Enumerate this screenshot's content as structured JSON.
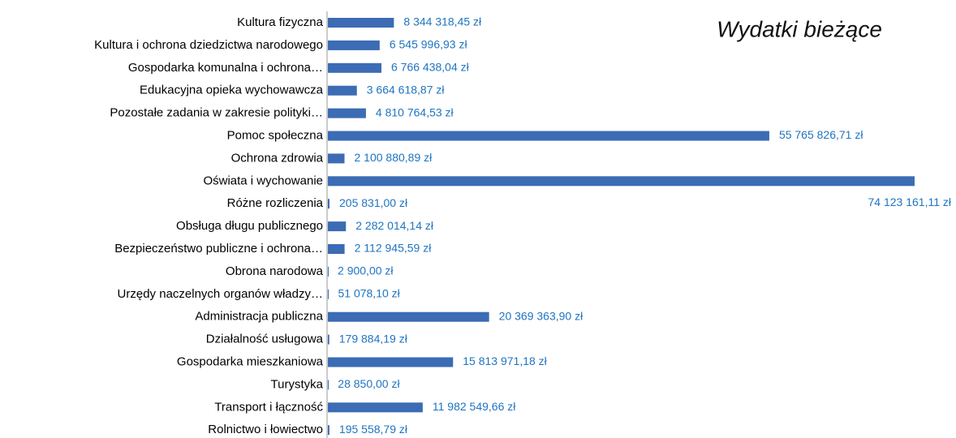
{
  "chart_data": {
    "type": "bar",
    "orientation": "horizontal",
    "title": "Wydatki bieżące",
    "categories": [
      "Kultura fizyczna",
      "Kultura i ochrona dziedzictwa narodowego",
      "Gospodarka komunalna i ochrona…",
      "Edukacyjna opieka wychowawcza",
      "Pozostałe zadania w zakresie polityki…",
      "Pomoc społeczna",
      "Ochrona zdrowia",
      "Oświata i wychowanie",
      "Różne rozliczenia",
      "Obsługa długu publicznego",
      "Bezpieczeństwo publiczne i ochrona…",
      "Obrona narodowa",
      "Urzędy naczelnych organów władzy…",
      "Administracja publiczna",
      "Działalność usługowa",
      "Gospodarka mieszkaniowa",
      "Turystyka",
      "Transport i łączność",
      "Rolnictwo i łowiectwo"
    ],
    "values": [
      8344318.45,
      6545996.93,
      6766438.04,
      3664618.87,
      4810764.53,
      55765826.71,
      2100880.89,
      74123161.11,
      205831.0,
      2282014.14,
      2112945.59,
      2900,
      51078.1,
      20369363.9,
      179884.19,
      15813971.18,
      28850,
      11982549.66,
      195558.79
    ],
    "value_labels": [
      "8 344 318,45 zł",
      "6 545 996,93 zł",
      "6 766 438,04 zł",
      "3 664 618,87 zł",
      "4 810 764,53 zł",
      "55 765 826,71 zł",
      "2 100 880,89 zł",
      "74 123 161,11 zł",
      "205 831,00 zł",
      "2 282 014,14 zł",
      "2 112 945,59 zł",
      "2 900,00 zł",
      "51 078,10 zł",
      "20 369 363,90 zł",
      "179 884,19 zł",
      "15 813 971,18 zł",
      "28 850,00 zł",
      "11 982 549,66 zł",
      "195 558,79 zł"
    ],
    "color": "#3b6cb4",
    "label_color": "#1f74c0"
  }
}
